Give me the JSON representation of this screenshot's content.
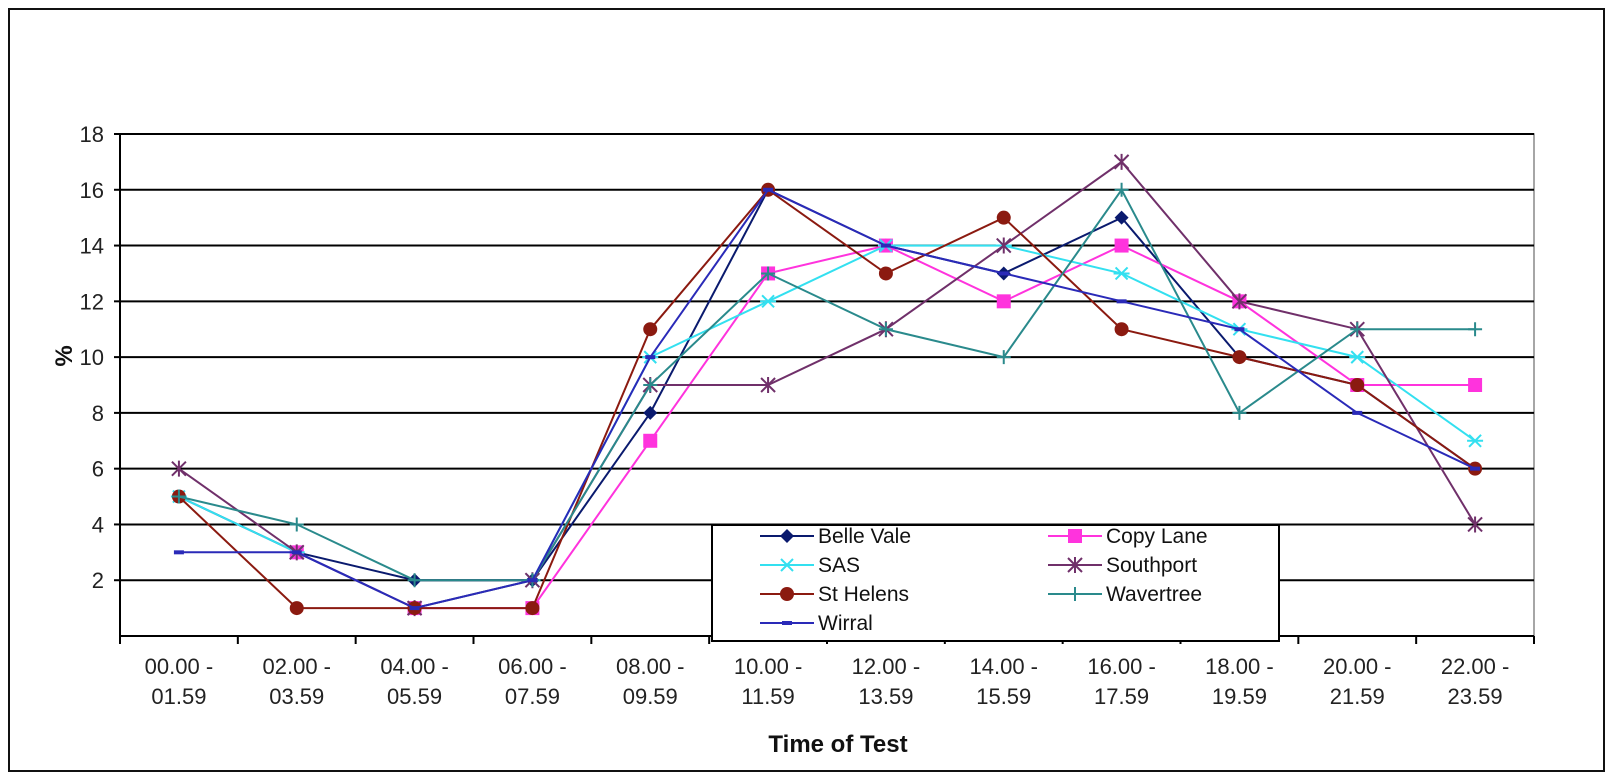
{
  "chart_data": {
    "type": "line",
    "title": "",
    "xlabel": "Time of Test",
    "ylabel": "%",
    "ylim": [
      0,
      18
    ],
    "yticks": [
      2,
      4,
      6,
      8,
      10,
      12,
      14,
      16,
      18
    ],
    "grid": "horizontal",
    "legend_position": "bottom-center",
    "categories": [
      [
        "00.00 -",
        "01.59"
      ],
      [
        "02.00 -",
        "03.59"
      ],
      [
        "04.00 -",
        "05.59"
      ],
      [
        "06.00 -",
        "07.59"
      ],
      [
        "08.00 -",
        "09.59"
      ],
      [
        "10.00 -",
        "11.59"
      ],
      [
        "12.00 -",
        "13.59"
      ],
      [
        "14.00 -",
        "15.59"
      ],
      [
        "16.00 -",
        "17.59"
      ],
      [
        "18.00 -",
        "19.59"
      ],
      [
        "20.00 -",
        "21.59"
      ],
      [
        "22.00 -",
        "23.59"
      ]
    ],
    "series": [
      {
        "name": "Belle Vale",
        "color": "#0a1a6e",
        "marker": "diamond",
        "values": [
          5,
          3,
          2,
          2,
          8,
          16,
          14,
          13,
          15,
          10,
          9,
          6
        ]
      },
      {
        "name": "Copy Lane",
        "color": "#ff33dd",
        "marker": "square",
        "values": [
          null,
          3,
          1,
          1,
          7,
          13,
          14,
          12,
          14,
          12,
          9,
          9
        ]
      },
      {
        "name": "SAS",
        "color": "#33e0f0",
        "marker": "asterisk",
        "values": [
          5,
          3,
          1,
          2,
          10,
          12,
          14,
          14,
          13,
          11,
          10,
          7
        ]
      },
      {
        "name": "Southport",
        "color": "#70306a",
        "marker": "x",
        "values": [
          6,
          3,
          1,
          2,
          9,
          9,
          11,
          14,
          17,
          12,
          11,
          4
        ]
      },
      {
        "name": "St Helens",
        "color": "#8b1a10",
        "marker": "circle",
        "values": [
          5,
          1,
          1,
          1,
          11,
          16,
          13,
          15,
          11,
          10,
          9,
          6
        ]
      },
      {
        "name": "Wavertree",
        "color": "#2a8a8c",
        "marker": "plus",
        "values": [
          5,
          4,
          2,
          2,
          9,
          13,
          11,
          10,
          16,
          8,
          11,
          11
        ]
      },
      {
        "name": "Wirral",
        "color": "#2a2ab8",
        "marker": "dash",
        "values": [
          3,
          3,
          1,
          2,
          10,
          16,
          14,
          13,
          12,
          11,
          8,
          6
        ]
      }
    ]
  }
}
